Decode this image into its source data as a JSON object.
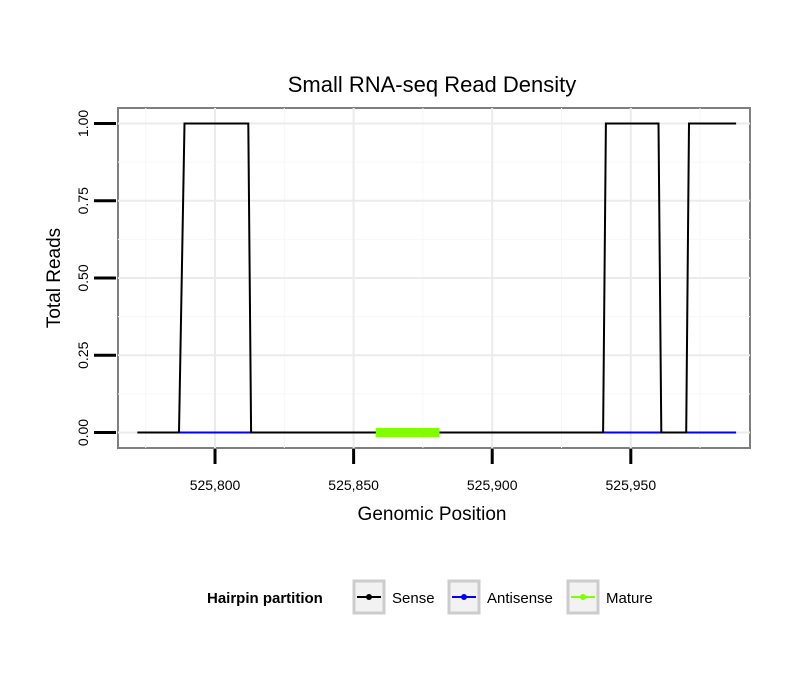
{
  "chart_data": {
    "type": "line",
    "title": "Small RNA-seq Read Density",
    "xlabel": "Genomic Position",
    "ylabel": "Total Reads",
    "xlim": [
      525765,
      525993
    ],
    "ylim": [
      -0.05,
      1.05
    ],
    "x_ticks": [
      525800,
      525850,
      525900,
      525950
    ],
    "x_tick_labels": [
      "525,800",
      "525,850",
      "525,900",
      "525,950"
    ],
    "y_ticks": [
      0,
      0.25,
      0.5,
      0.75,
      1.0
    ],
    "y_tick_labels": [
      "0.00",
      "0.25",
      "0.50",
      "0.75",
      "1.00"
    ],
    "grid": true,
    "legend": {
      "title": "Hairpin partition",
      "position": "bottom",
      "entries": [
        "Sense",
        "Antisense",
        "Mature"
      ]
    },
    "series": [
      {
        "name": "Antisense",
        "color": "#0000ff",
        "x": [
          525772,
          525988
        ],
        "y": [
          0,
          0
        ]
      },
      {
        "name": "Sense",
        "color": "#000000",
        "x": [
          525772,
          525787,
          525789,
          525812,
          525813,
          525940,
          525941,
          525960,
          525961,
          525970,
          525971,
          525988
        ],
        "y": [
          0,
          0,
          1,
          1,
          0,
          0,
          1,
          1,
          0,
          0,
          1,
          1
        ]
      },
      {
        "name": "Mature",
        "color": "#7fff00",
        "x": [
          525858,
          525881
        ],
        "y": [
          0,
          0
        ]
      }
    ]
  }
}
